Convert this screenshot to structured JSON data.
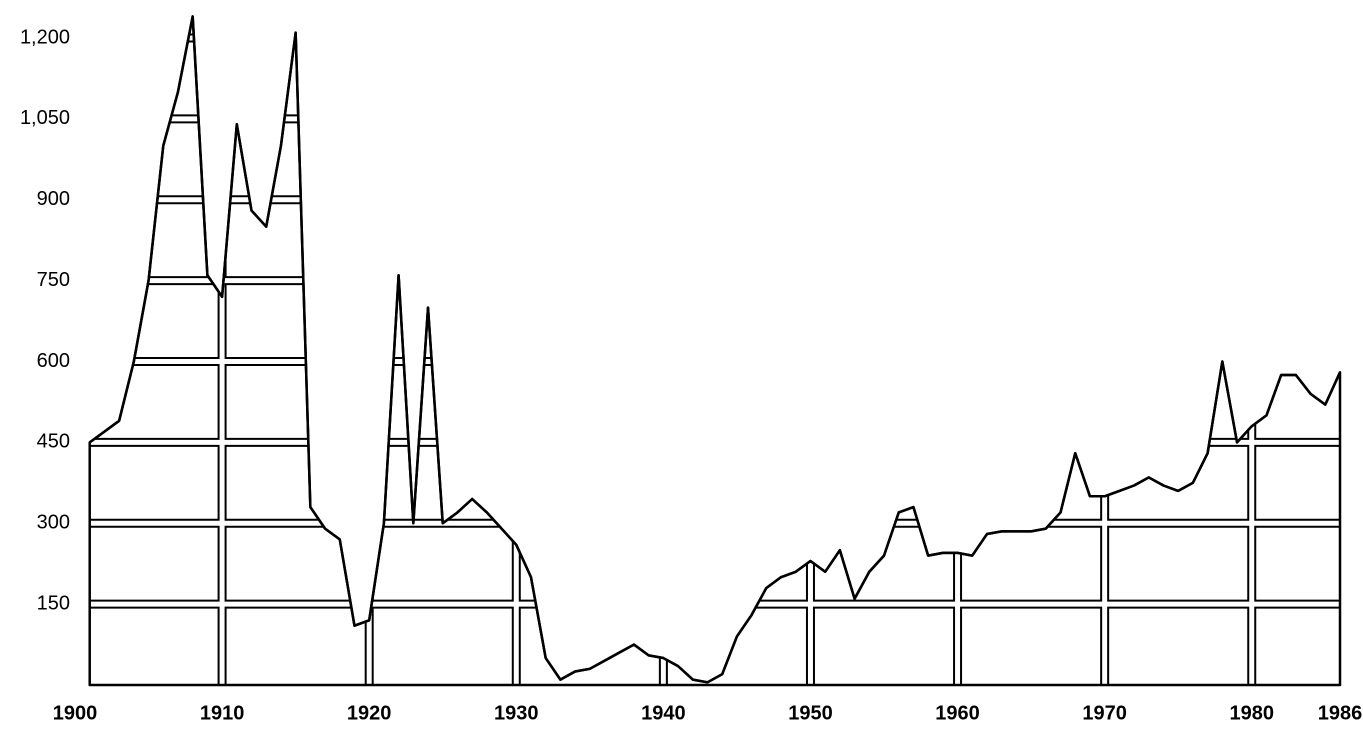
{
  "chart_data": {
    "type": "area",
    "x": [
      1901,
      1902,
      1903,
      1904,
      1905,
      1906,
      1907,
      1908,
      1909,
      1910,
      1911,
      1912,
      1913,
      1914,
      1915,
      1916,
      1917,
      1918,
      1919,
      1920,
      1921,
      1922,
      1923,
      1924,
      1925,
      1926,
      1927,
      1928,
      1929,
      1930,
      1931,
      1932,
      1933,
      1934,
      1935,
      1936,
      1937,
      1938,
      1939,
      1940,
      1941,
      1942,
      1943,
      1944,
      1945,
      1946,
      1947,
      1948,
      1949,
      1950,
      1951,
      1952,
      1953,
      1954,
      1955,
      1956,
      1957,
      1958,
      1959,
      1960,
      1961,
      1962,
      1963,
      1964,
      1965,
      1966,
      1967,
      1968,
      1969,
      1970,
      1971,
      1972,
      1973,
      1974,
      1975,
      1976,
      1977,
      1978,
      1979,
      1980,
      1981,
      1982,
      1983,
      1984,
      1985,
      1986
    ],
    "series": [
      {
        "color": "#000000",
        "fill": "#ffffff",
        "values": [
          450,
          470,
          490,
          600,
          750,
          1000,
          1100,
          1240,
          760,
          720,
          1040,
          880,
          850,
          1000,
          1210,
          330,
          290,
          270,
          110,
          120,
          300,
          760,
          300,
          700,
          300,
          320,
          345,
          320,
          290,
          260,
          200,
          50,
          10,
          25,
          30,
          45,
          60,
          75,
          55,
          50,
          35,
          10,
          5,
          20,
          90,
          130,
          180,
          200,
          210,
          230,
          210,
          250,
          160,
          210,
          240,
          320,
          330,
          240,
          245,
          245,
          240,
          280,
          285,
          285,
          285,
          290,
          320,
          430,
          350,
          350,
          360,
          370,
          385,
          370,
          360,
          375,
          430,
          600,
          450,
          480,
          500,
          575,
          575,
          540,
          520,
          580
        ]
      }
    ],
    "xlim": [
      1900,
      1986
    ],
    "xticks": [
      1900,
      1910,
      1920,
      1930,
      1940,
      1950,
      1960,
      1970,
      1980,
      1986
    ],
    "ylim": [
      0,
      1200
    ],
    "yticks": [
      150,
      300,
      450,
      600,
      750,
      900,
      {
        "value": 1050,
        "label": "1,050"
      },
      {
        "value": 1200,
        "label": "1,200"
      }
    ],
    "grid": true
  }
}
